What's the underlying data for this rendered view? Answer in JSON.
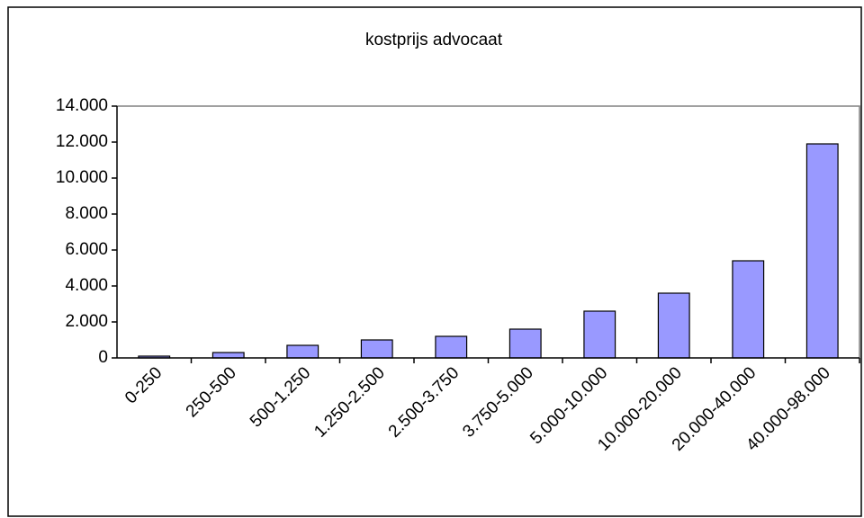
{
  "chart_data": {
    "type": "bar",
    "title": "kostprijs advocaat",
    "categories": [
      "0-250",
      "250-500",
      "500-1.250",
      "1.250-2.500",
      "2.500-3.750",
      "3.750-5.000",
      "5.000-10.000",
      "10.000-20.000",
      "20.000-40.000",
      "40.000-98.000"
    ],
    "values": [
      100,
      300,
      700,
      1000,
      1200,
      1600,
      2600,
      3600,
      5400,
      11900
    ],
    "color": "#9999ff",
    "ylim": [
      0,
      14000
    ],
    "yticks": [
      0,
      {
        "value": 2000,
        "label": "2.000"
      },
      {
        "value": 4000,
        "label": "4.000"
      },
      {
        "value": 6000,
        "label": "6.000"
      },
      {
        "value": 8000,
        "label": "8.000"
      },
      {
        "value": 10000,
        "label": "10.000"
      },
      {
        "value": 12000,
        "label": "12.000"
      },
      {
        "value": 14000,
        "label": "14.000"
      }
    ],
    "grid": false
  }
}
